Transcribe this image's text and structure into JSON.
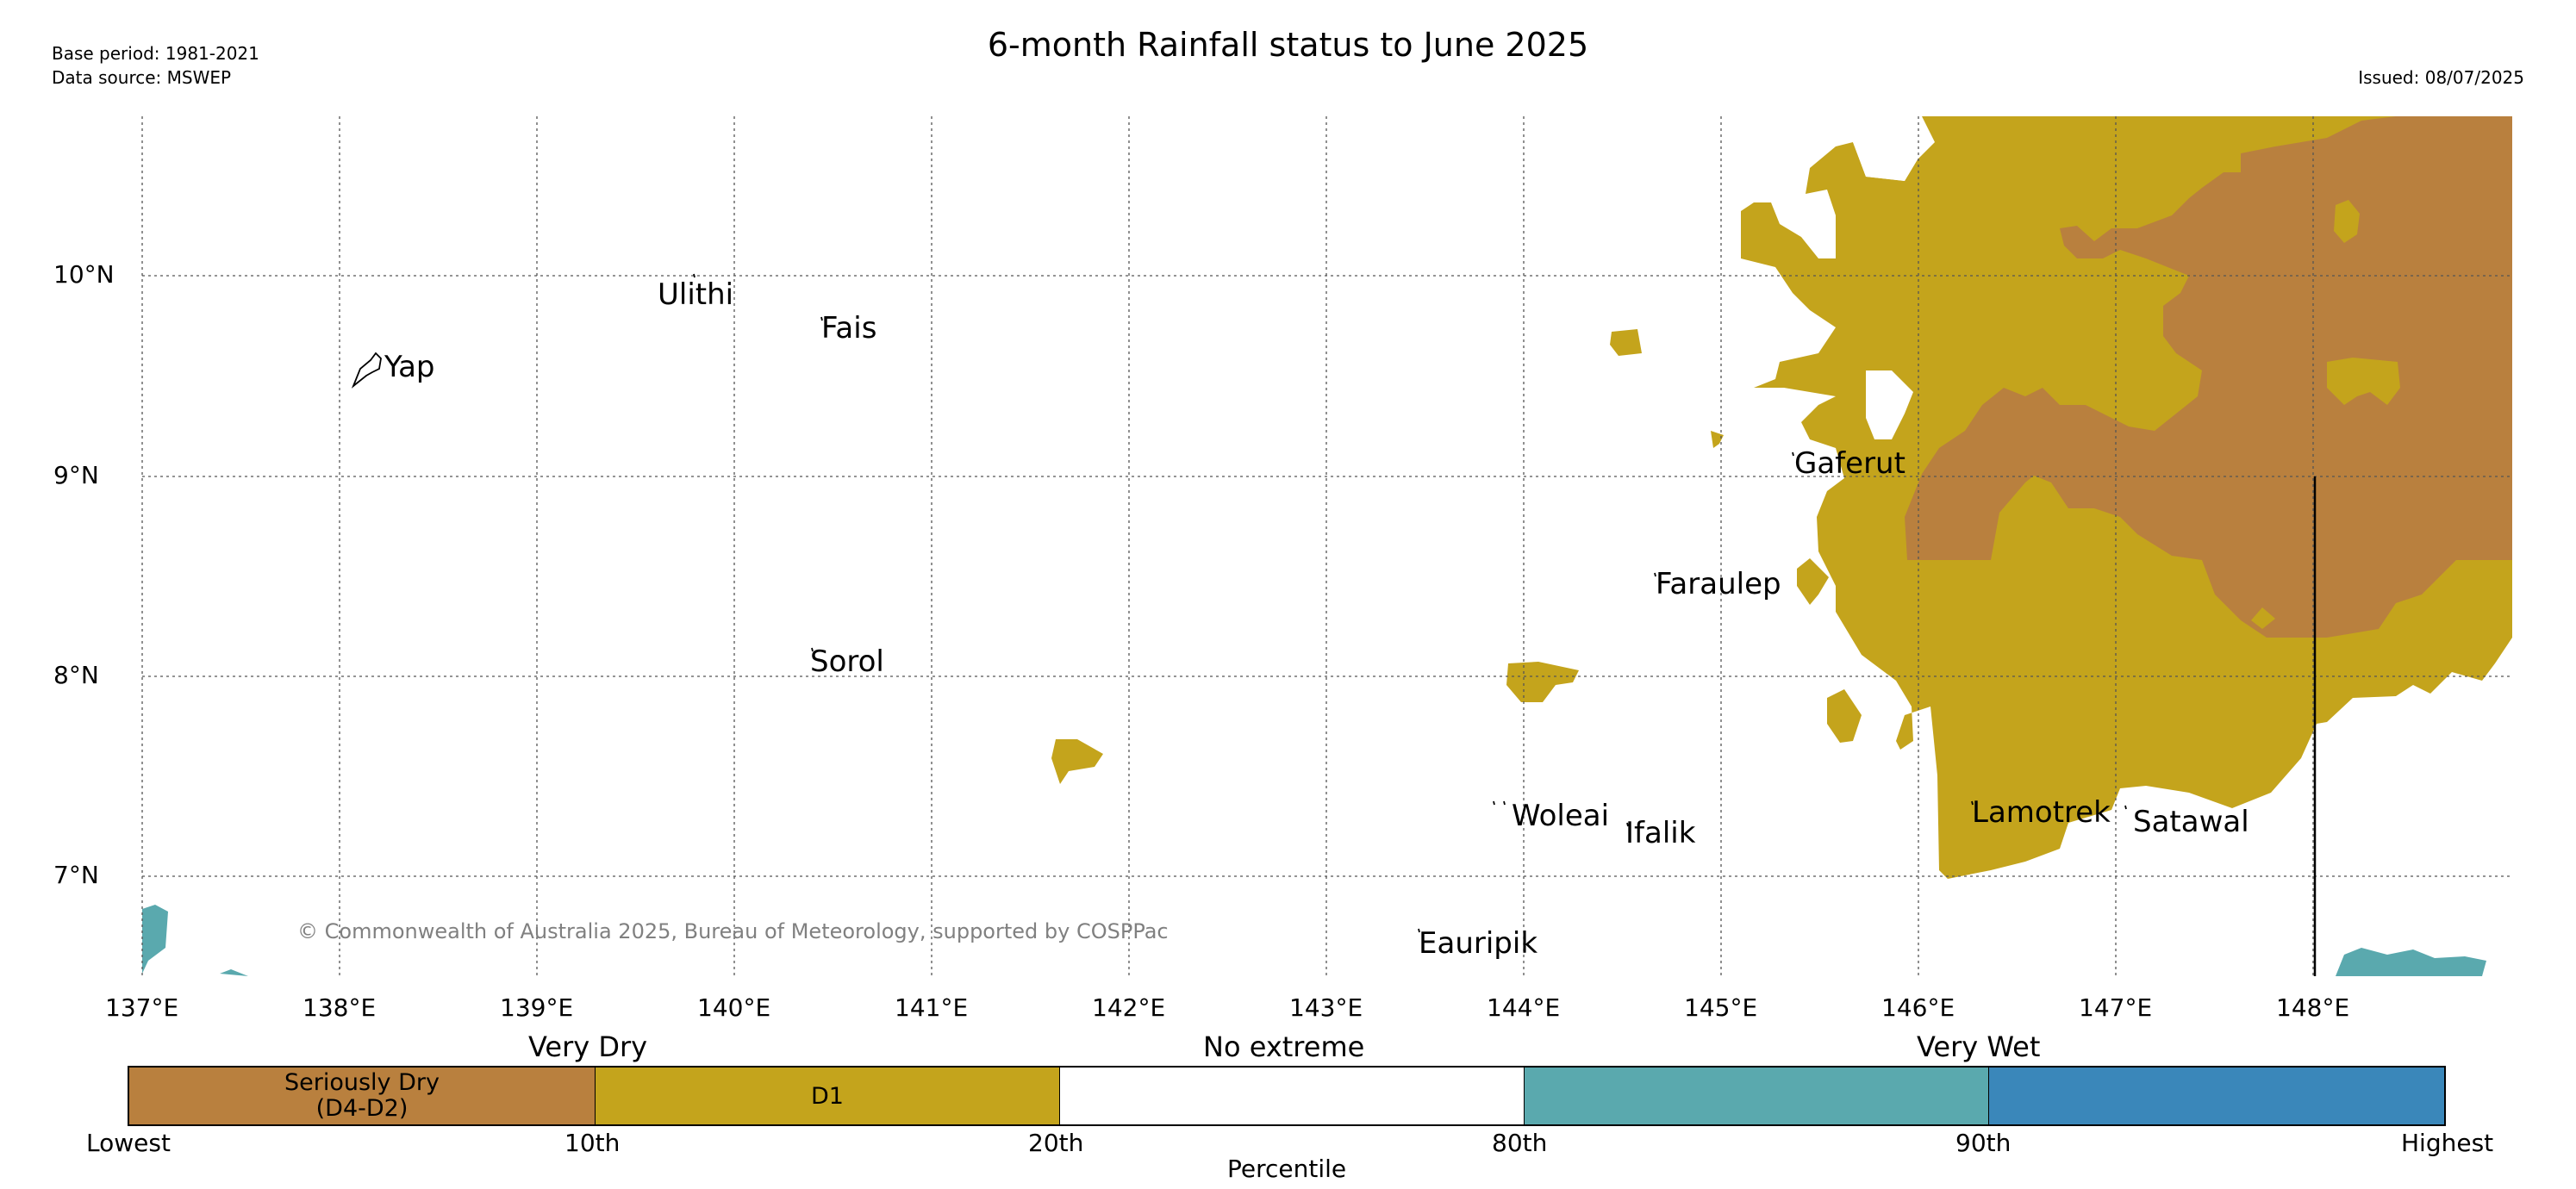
{
  "header": {
    "title": "6-month Rainfall status to June 2025",
    "base_period": "Base period: 1981-2021",
    "data_source": "Data source: MSWEP",
    "issued": "Issued: 08/07/2025"
  },
  "map": {
    "lat_ticks": [
      "10°N",
      "9°N",
      "8°N",
      "7°N"
    ],
    "lon_ticks": [
      "137°E",
      "138°E",
      "139°E",
      "140°E",
      "141°E",
      "142°E",
      "143°E",
      "144°E",
      "145°E",
      "146°E",
      "147°E",
      "148°E"
    ],
    "places": {
      "yap": "Yap",
      "ulithi": "Ulithi",
      "fais": "Fais",
      "gaferut": "Gaferut",
      "faraulep": "Faraulep",
      "sorol": "Sorol",
      "woleai": "Woleai",
      "ifalik": "Ifalik",
      "lamotrek": "Lamotrek",
      "satawal": "Satawal",
      "eauripik": "Eauripik"
    },
    "copyright": "© Commonwealth of Australia 2025, Bureau of Meteorology, supported by COSPPac",
    "colors": {
      "seriously_dry": "#b9803e",
      "d1": "#c4a41c",
      "no_extreme": "#ffffff",
      "very_wet_light": "#5aa9ae",
      "very_wet_dark": "#3a87ba"
    }
  },
  "colorbar": {
    "headings": {
      "very_dry": "Very Dry",
      "no_extreme": "No extreme",
      "very_wet": "Very Wet"
    },
    "segment_labels": {
      "seriously_dry_1": "Seriously Dry",
      "seriously_dry_2": "(D4-D2)",
      "d1": "D1"
    },
    "ticks": {
      "lowest": "Lowest",
      "p10": "10th",
      "p20": "20th",
      "p80": "80th",
      "p90": "90th",
      "highest": "Highest"
    },
    "xlabel": "Percentile"
  }
}
